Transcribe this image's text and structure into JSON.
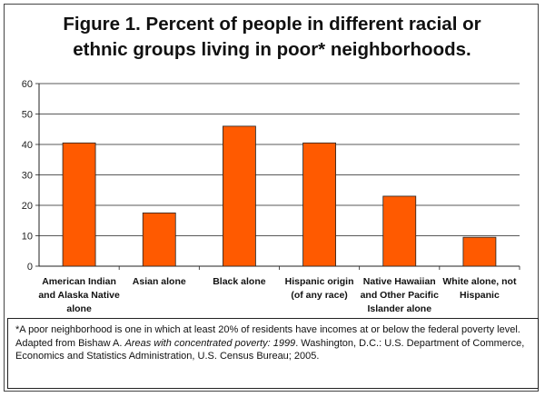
{
  "title_line1": "Figure 1.  Percent of people in different racial or",
  "title_line2": "ethnic groups living in poor* neighborhoods.",
  "chart_data": {
    "type": "bar",
    "title": "Figure 1.  Percent of people in different racial or ethnic groups living in poor* neighborhoods.",
    "categories": [
      [
        "American Indian",
        "and Alaska Native",
        "alone"
      ],
      [
        "Asian alone"
      ],
      [
        "Black alone"
      ],
      [
        "Hispanic origin",
        "(of any race)"
      ],
      [
        "Native Hawaiian",
        "and Other Pacific",
        "Islander alone"
      ],
      [
        "White alone, not",
        "Hispanic"
      ]
    ],
    "values": [
      40.5,
      17.5,
      46,
      40.5,
      23,
      9.5
    ],
    "ylim": [
      0,
      60
    ],
    "yticks": [
      0,
      10,
      20,
      30,
      40,
      50,
      60
    ],
    "xlabel": "",
    "ylabel": "",
    "grid": true,
    "bar_color": "#FF5A00"
  },
  "footnote": {
    "note": "*A poor neighborhood is one in which at least 20% of residents have incomes at or below the federal poverty level.",
    "source_prefix": "Adapted from Bishaw A.  ",
    "source_title": "Areas with concentrated poverty:  1999",
    "source_suffix": ". Washington, D.C.: U.S. Department of Commerce, Economics and Statistics Administration, U.S. Census Bureau; 2005."
  }
}
